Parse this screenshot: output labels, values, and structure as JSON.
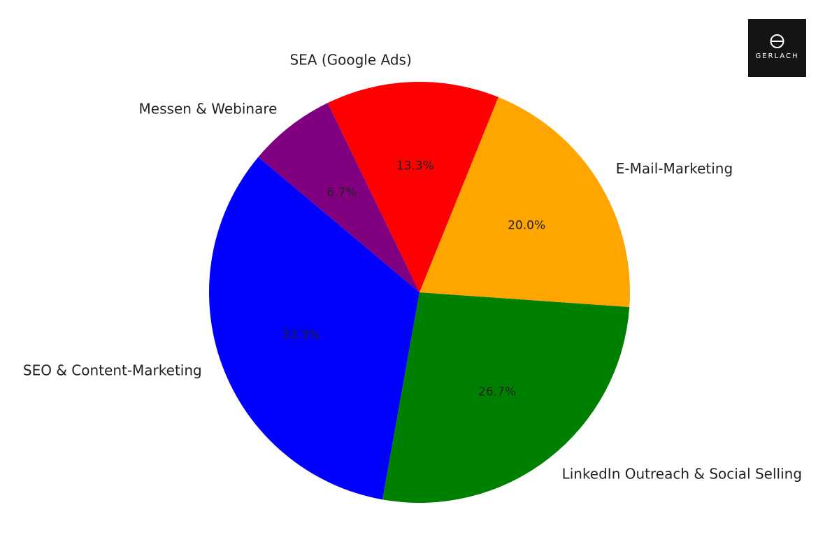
{
  "chart_data": {
    "type": "pie",
    "categories": [
      "SEO & Content-Marketing",
      "LinkedIn Outreach & Social Selling",
      "E-Mail-Marketing",
      "SEA (Google Ads)",
      "Messen & Webinare"
    ],
    "values": [
      33.3,
      26.7,
      20.0,
      13.3,
      6.7
    ],
    "value_labels": [
      "33.3%",
      "26.7%",
      "20.0%",
      "13.3%",
      "6.7%"
    ],
    "colors": [
      "#0000ff",
      "#008000",
      "#ffa500",
      "#ff0000",
      "#800080"
    ],
    "start_angle": 140
  },
  "logo": {
    "text": "GERLACH"
  }
}
